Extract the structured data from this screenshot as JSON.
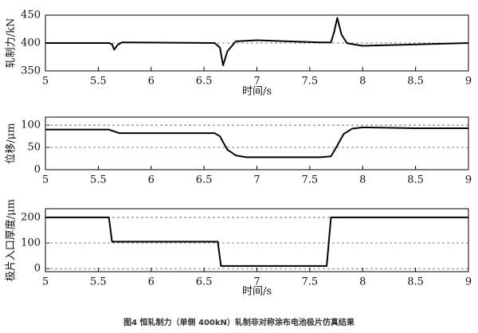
{
  "chart_data": [
    {
      "type": "line",
      "ylabel": "轧制力/kN",
      "xlabel": "时间/s",
      "x": [
        5,
        5.6,
        5.63,
        5.65,
        5.68,
        5.72,
        5.8,
        6.6,
        6.65,
        6.68,
        6.72,
        6.8,
        7.0,
        7.6,
        7.7,
        7.73,
        7.76,
        7.8,
        7.85,
        7.9,
        8.0,
        9
      ],
      "values": [
        400,
        400,
        398,
        388,
        396,
        401,
        401,
        400,
        392,
        360,
        385,
        403,
        405,
        401,
        401,
        420,
        445,
        415,
        400,
        398,
        395,
        400
      ],
      "color": "#000000",
      "xlim": [
        5,
        9
      ],
      "xticks": [
        5,
        5.5,
        6,
        6.5,
        7,
        7.5,
        8,
        8.5,
        9
      ],
      "ylim": [
        350,
        450
      ],
      "yticks": [
        350,
        400,
        450
      ],
      "grid": true
    },
    {
      "type": "line",
      "ylabel": "位移/μm",
      "x": [
        5,
        5.6,
        5.7,
        6.6,
        6.65,
        6.72,
        6.8,
        6.9,
        7.6,
        7.7,
        7.75,
        7.82,
        7.9,
        8.0,
        8.5,
        9
      ],
      "values": [
        90,
        90,
        82,
        82,
        75,
        45,
        32,
        28,
        28,
        30,
        50,
        80,
        92,
        95,
        93,
        93
      ],
      "color": "#000000",
      "xlim": [
        5,
        9
      ],
      "xticks": [
        5,
        5.5,
        6,
        6.5,
        7,
        7.5,
        8,
        8.5,
        9
      ],
      "ylim": [
        0,
        118
      ],
      "yticks": [
        0,
        50,
        100
      ],
      "grid": true
    },
    {
      "type": "line",
      "ylabel": "极片入口厚度/μm",
      "xlabel": "时间/s",
      "x": [
        5,
        5.6,
        5.63,
        6.63,
        6.66,
        7.66,
        7.7,
        9
      ],
      "values": [
        200,
        200,
        105,
        105,
        10,
        10,
        200,
        200
      ],
      "color": "#000000",
      "xlim": [
        5,
        9
      ],
      "xticks": [
        5,
        5.5,
        6,
        6.5,
        7,
        7.5,
        8,
        8.5,
        9
      ],
      "ylim": [
        -12,
        234
      ],
      "yticks": [
        0,
        100,
        200
      ],
      "grid": true
    }
  ],
  "caption": "图4 恒轧制力（单侧 400kN）轧制非对称涂布电池极片仿真结果"
}
